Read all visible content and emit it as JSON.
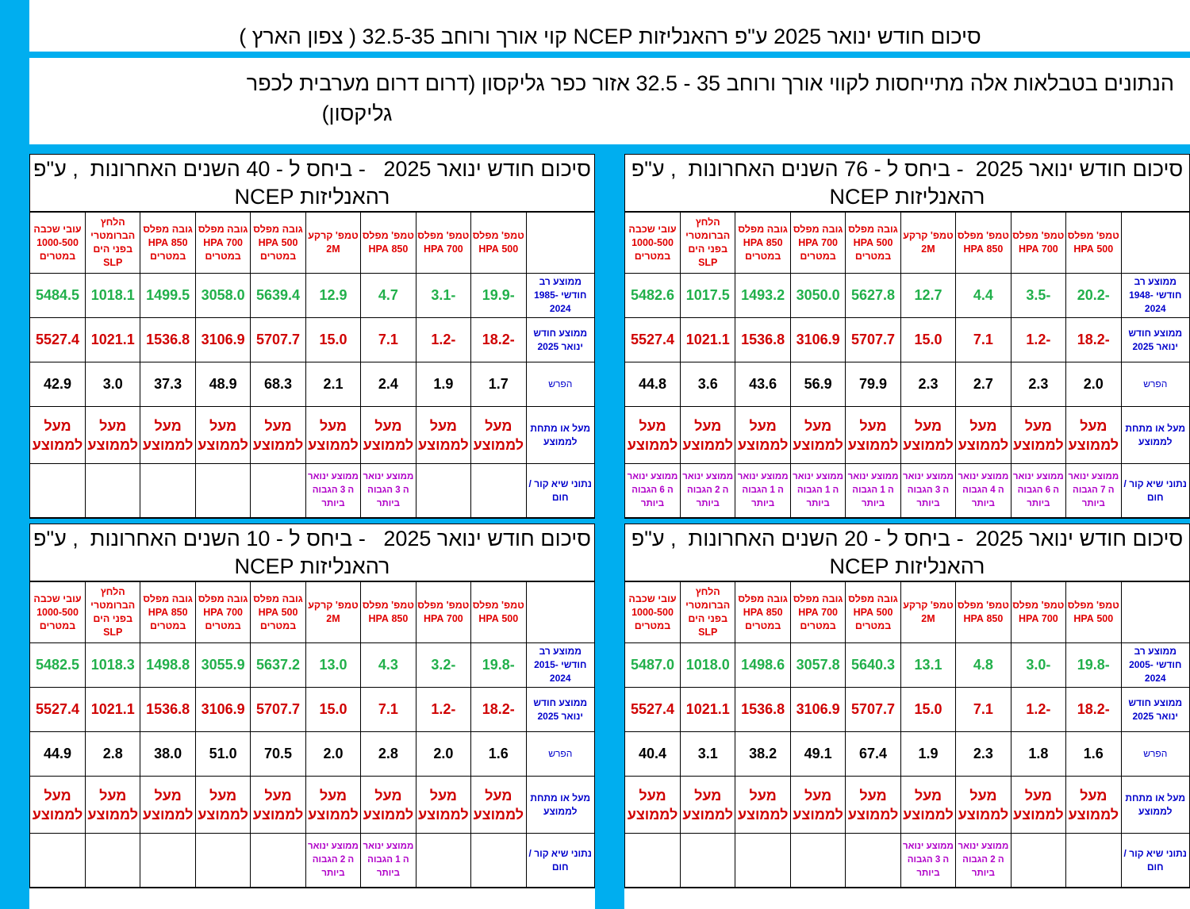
{
  "title": "סיכום חודש ינואר 2025 ע\"פ רהאנליזות NCEP קוי אורך ורוחב 32.5-35 ( צפון הארץ )",
  "note_line1": "הנתונים בטבלאות אלה מתייחסות לקווי אורך ורוחב 35 - 32.5      אזור כפר  גליקסון  (דרום דרום מערבית לכפר",
  "note_line2": "גליקסון)",
  "colors": {
    "frame": "#00aeef",
    "average": "#22b04b",
    "current": "#d00000",
    "label": "#0000cc",
    "record": "#b000c8"
  },
  "row_labels": {
    "current": "ממוצע חודש ינואר 2025",
    "diff": "הפרש",
    "above_below": "מעל או מתחת לממוצע",
    "record": "נתוני שיא קור / חום"
  },
  "columns": [
    "טמפ' מפלס 500 HPA",
    "טמפ' מפלס 700 HPA",
    "טמפ' מפלס 850 HPA",
    "טמפ' קרקע 2M",
    "גובה מפלס 500 HPA במטרים",
    "גובה מפלס 700 HPA במטרים",
    "גובה מפלס 850 HPA במטרים",
    "הלחץ הברומטרי בפני הים SLP",
    "עובי שכבה 1000-500 במטרים"
  ],
  "panels": [
    {
      "title": "סיכום חודש ינואר 2025  - ביחס ל - 76 השנים האחרונות  , ע\"פ רהאנליזות NCEP",
      "avg_label": "ממוצע רב חודשי 1948-2024",
      "avg": [
        "-20.2",
        "-3.5",
        "4.4",
        "12.7",
        "5627.8",
        "3050.0",
        "1493.2",
        "1017.5",
        "5482.6"
      ],
      "cur": [
        "-18.2",
        "-1.2",
        "7.1",
        "15.0",
        "5707.7",
        "3106.9",
        "1536.8",
        "1021.1",
        "5527.4"
      ],
      "diff": [
        "2.0",
        "2.3",
        "2.7",
        "2.3",
        "79.9",
        "56.9",
        "43.6",
        "3.6",
        "44.8"
      ],
      "above": [
        "מעל לממוצע",
        "מעל לממוצע",
        "מעל לממוצע",
        "מעל לממוצע",
        "מעל לממוצע",
        "מעל לממוצע",
        "מעל לממוצע",
        "מעל לממוצע",
        "מעל לממוצע"
      ],
      "record": [
        "ממוצע ינואר ה 7 הגבוה ביותר",
        "ממוצע ינואר ה 6 הגבוה ביותר",
        "ממוצע ינואר ה 4 הגבוה ביותר",
        "ממוצע ינואר ה 3 הגבוה ביותר",
        "ממוצע ינואר ה 1 הגבוה ביותר",
        "ממוצע ינואר ה 1 הגבוה ביותר",
        "ממוצע ינואר ה 1 הגבוה ביותר",
        "ממוצע ינואר ה 2 הגבוה ביותר",
        "ממוצע ינואר ה 6 הגבוה ביותר"
      ]
    },
    {
      "title": "סיכום חודש ינואר 2025   - ביחס ל - 40 השנים האחרונות  , ע\"פ רהאנליזות NCEP",
      "avg_label": "ממוצע רב חודשי 1985-2024",
      "avg": [
        "-19.9",
        "-3.1",
        "4.7",
        "12.9",
        "5639.4",
        "3058.0",
        "1499.5",
        "1018.1",
        "5484.5"
      ],
      "cur": [
        "-18.2",
        "-1.2",
        "7.1",
        "15.0",
        "5707.7",
        "3106.9",
        "1536.8",
        "1021.1",
        "5527.4"
      ],
      "diff": [
        "1.7",
        "1.9",
        "2.4",
        "2.1",
        "68.3",
        "48.9",
        "37.3",
        "3.0",
        "42.9"
      ],
      "above": [
        "מעל לממוצע",
        "מעל לממוצע",
        "מעל לממוצע",
        "מעל לממוצע",
        "מעל לממוצע",
        "מעל לממוצע",
        "מעל לממוצע",
        "מעל לממוצע",
        "מעל לממוצע"
      ],
      "record": [
        "",
        "",
        "ממוצע ינואר ה 3 הגבוה ביותר",
        "ממוצע ינואר ה 3 הגבוה ביותר",
        "",
        "",
        "",
        "",
        ""
      ]
    },
    {
      "title": "סיכום חודש ינואר 2025  - ביחס ל - 20 השנים האחרונות  , ע\"פ רהאנליזות NCEP",
      "avg_label": "ממוצע רב חודשי 2005-2024",
      "avg": [
        "-19.8",
        "-3.0",
        "4.8",
        "13.1",
        "5640.3",
        "3057.8",
        "1498.6",
        "1018.0",
        "5487.0"
      ],
      "cur": [
        "-18.2",
        "-1.2",
        "7.1",
        "15.0",
        "5707.7",
        "3106.9",
        "1536.8",
        "1021.1",
        "5527.4"
      ],
      "diff": [
        "1.6",
        "1.8",
        "2.3",
        "1.9",
        "67.4",
        "49.1",
        "38.2",
        "3.1",
        "40.4"
      ],
      "above": [
        "מעל לממוצע",
        "מעל לממוצע",
        "מעל לממוצע",
        "מעל לממוצע",
        "מעל לממוצע",
        "מעל לממוצע",
        "מעל לממוצע",
        "מעל לממוצע",
        "מעל לממוצע"
      ],
      "record": [
        "",
        "",
        "ממוצע ינואר ה 2 הגבוה ביותר",
        "ממוצע ינואר ה 3 הגבוה ביותר",
        "",
        "",
        "",
        "",
        ""
      ]
    },
    {
      "title": "סיכום חודש ינואר 2025   - ביחס ל - 10 השנים האחרונות  , ע\"פ רהאנליזות NCEP",
      "avg_label": "ממוצע רב חודשי 2015-2024",
      "avg": [
        "-19.8",
        "-3.2",
        "4.3",
        "13.0",
        "5637.2",
        "3055.9",
        "1498.8",
        "1018.3",
        "5482.5"
      ],
      "cur": [
        "-18.2",
        "-1.2",
        "7.1",
        "15.0",
        "5707.7",
        "3106.9",
        "1536.8",
        "1021.1",
        "5527.4"
      ],
      "diff": [
        "1.6",
        "2.0",
        "2.8",
        "2.0",
        "70.5",
        "51.0",
        "38.0",
        "2.8",
        "44.9"
      ],
      "above": [
        "מעל לממוצע",
        "מעל לממוצע",
        "מעל לממוצע",
        "מעל לממוצע",
        "מעל לממוצע",
        "מעל לממוצע",
        "מעל לממוצע",
        "מעל לממוצע",
        "מעל לממוצע"
      ],
      "record": [
        "",
        "",
        "ממוצע ינואר ה 1 הגבוה ביותר",
        "ממוצע ינואר ה 2 הגבוה ביותר",
        "",
        "",
        "",
        "",
        ""
      ]
    }
  ]
}
